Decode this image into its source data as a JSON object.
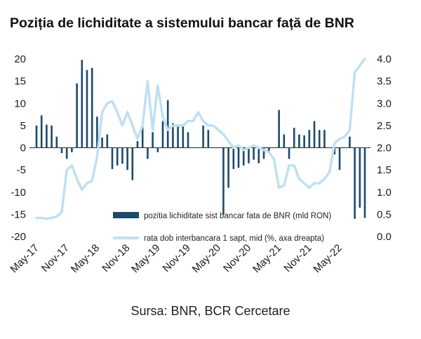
{
  "title": "Poziția de lichiditate a sistemului bancar față de BNR",
  "source": "Sursa: BNR, BCR Cercetare",
  "chart_data": {
    "type": "bar+line",
    "title": "Poziția de lichiditate a sistemului bancar față de BNR",
    "x_tick_labels": [
      "May-17",
      "Nov-17",
      "May-18",
      "Nov-18",
      "May-19",
      "Nov-19",
      "May-20",
      "Nov-20",
      "May-21",
      "Nov-21",
      "May-22"
    ],
    "y_left": {
      "ticks": [
        20,
        15,
        10,
        5,
        0,
        -5,
        -10,
        -15,
        -20
      ],
      "ylim": [
        -20,
        20
      ]
    },
    "y_right": {
      "ticks": [
        "4.0",
        "3.5",
        "3.0",
        "2.5",
        "2.0",
        "1.5",
        "1.0",
        "0.5",
        "0.0"
      ],
      "ylim": [
        0,
        4
      ]
    },
    "legend_position": "bottom-right-inside",
    "colors": {
      "bars": "#1b4a6b",
      "line": "#bfe0f2"
    },
    "series": [
      {
        "name": "pozitia lichiditate sist bancar fata de BNR (mld RON)",
        "kind": "bar",
        "axis": "left",
        "unit_note": "monthly, May-17 to May-22",
        "values": [
          5,
          7.3,
          5.2,
          5,
          2.5,
          -1.2,
          -2.5,
          -1,
          14.5,
          19.8,
          17.5,
          18,
          7,
          2.3,
          3,
          -4.8,
          -4,
          -3.6,
          -5,
          -7.3,
          1.5,
          4.8,
          -2.5,
          3.5,
          -1,
          6,
          10.7,
          5.5,
          5,
          5.3,
          3.5,
          0,
          0,
          5,
          4,
          0,
          0,
          -15,
          -9,
          -4.8,
          -4.5,
          -4,
          -3.5,
          -2.7,
          -3.5,
          -2.5,
          -1,
          0,
          8.5,
          3,
          -2.5,
          4.5,
          3,
          2.8,
          4,
          6,
          4,
          4,
          0,
          -1.5,
          -5,
          0,
          2.5,
          -16,
          -13.5,
          -15.8
        ]
      },
      {
        "name": "rata dob interbancara 1 sapt, mid (%, axa dreapta)",
        "kind": "line",
        "axis": "right",
        "x": [
          0,
          1,
          2,
          3,
          4,
          5,
          6,
          7,
          8,
          9,
          10,
          11,
          12,
          13,
          14,
          15,
          16,
          17,
          18,
          19,
          20,
          21,
          22,
          23,
          24,
          25,
          26,
          27,
          28,
          29,
          30,
          31,
          32,
          33,
          34,
          35,
          36,
          37,
          38,
          39,
          40,
          41,
          42,
          43,
          44,
          45,
          46,
          47,
          48,
          49,
          50,
          51,
          52,
          53,
          54,
          55,
          56,
          57,
          58,
          59,
          60,
          61,
          62,
          63,
          64,
          65
        ],
        "values": [
          0.42,
          0.42,
          0.4,
          0.42,
          0.45,
          0.55,
          1.5,
          1.6,
          1.3,
          1.05,
          1.2,
          1.25,
          1.8,
          2.8,
          3,
          3.05,
          2.8,
          2.5,
          2.8,
          2.5,
          2.2,
          2.5,
          3.5,
          2.4,
          3.4,
          2.7,
          2.4,
          2.5,
          2.5,
          2.5,
          2.6,
          2.6,
          2.8,
          2.6,
          2.5,
          2.5,
          2.4,
          2.3,
          2.15,
          2,
          2.05,
          1.95,
          2,
          2.05,
          2,
          1.95,
          1.9,
          1.75,
          1.1,
          1.15,
          1.6,
          1.6,
          1.3,
          1.2,
          1.1,
          1.2,
          1.2,
          1.3,
          1.45,
          2.1,
          2.2,
          2.25,
          2.4,
          3.7,
          3.85,
          4
        ]
      }
    ]
  }
}
